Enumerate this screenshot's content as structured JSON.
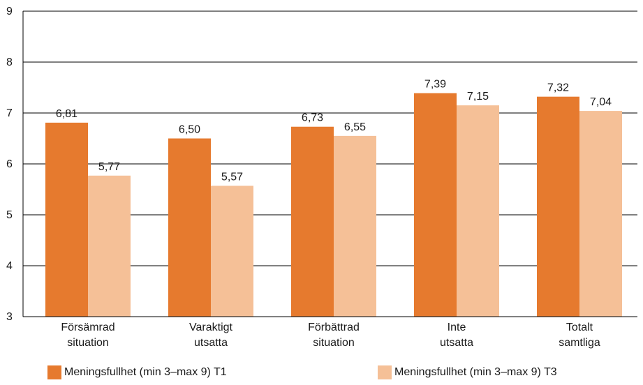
{
  "chart_data": {
    "type": "bar",
    "categories": [
      [
        "Försämrad",
        "situation"
      ],
      [
        "Varaktigt",
        "utsatta"
      ],
      [
        "Förbättrad",
        "situation"
      ],
      [
        "Inte",
        "utsatta"
      ],
      [
        "Totalt",
        "samtliga"
      ]
    ],
    "series": [
      {
        "name": "Meningsfullhet (min 3–max 9) T1",
        "color": "#e67a2e",
        "values": [
          6.81,
          6.5,
          6.73,
          7.39,
          7.32
        ],
        "labels": [
          "6,81",
          "6,50",
          "6,73",
          "7,39",
          "7,32"
        ]
      },
      {
        "name": "Meningsfullhet (min 3–max 9) T3",
        "color": "#f5c097",
        "values": [
          5.77,
          5.57,
          6.55,
          7.15,
          7.04
        ],
        "labels": [
          "5,77",
          "5,57",
          "6,55",
          "7,15",
          "7,04"
        ]
      }
    ],
    "ylim": [
      3,
      9
    ],
    "yticks": [
      3,
      4,
      5,
      6,
      7,
      8,
      9
    ],
    "grid": true,
    "legend": "bottom",
    "title": "",
    "xlabel": "",
    "ylabel": ""
  }
}
